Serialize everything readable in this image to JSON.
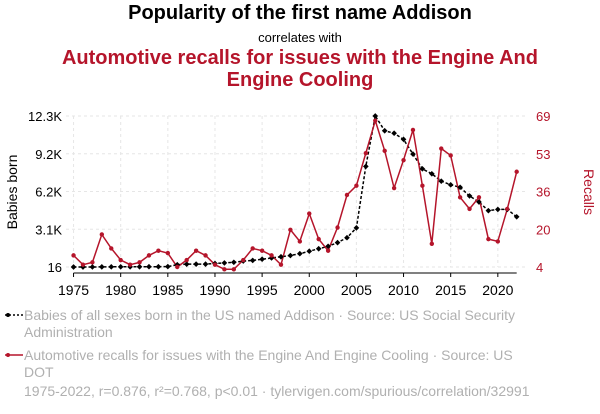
{
  "titles": {
    "line1": "Popularity of the first name Addison",
    "line2": "correlates with",
    "line3": "Automotive recalls for issues with the Engine And Engine Cooling"
  },
  "legend": {
    "series1": "Babies of all sexes born in the US named Addison · Source: US Social Security Administration",
    "series2": "Automotive recalls for issues with the Engine And Engine Cooling · Source: US DOT"
  },
  "footer": "1975-2022, r=0.876, r²=0.768, p<0.01 · tylervigen.com/spurious/correlation/32991",
  "colors": {
    "series1": "#000000",
    "series2": "#b5152b",
    "grid": "#e6e6e6"
  },
  "chart_data": {
    "type": "line",
    "x": [
      1975,
      1976,
      1977,
      1978,
      1979,
      1980,
      1981,
      1982,
      1983,
      1984,
      1985,
      1986,
      1987,
      1988,
      1989,
      1990,
      1991,
      1992,
      1993,
      1994,
      1995,
      1996,
      1997,
      1998,
      1999,
      2000,
      2001,
      2002,
      2003,
      2004,
      2005,
      2006,
      2007,
      2008,
      2009,
      2010,
      2011,
      2012,
      2013,
      2014,
      2015,
      2016,
      2017,
      2018,
      2019,
      2020,
      2021,
      2022
    ],
    "xticks": [
      "1975",
      "1980",
      "1985",
      "1990",
      "1995",
      "2000",
      "2005",
      "2010",
      "2015",
      "2020"
    ],
    "grid": true,
    "series": [
      {
        "name": "Babies of all sexes born in the US named Addison",
        "axis": "left",
        "ylabel": "Babies born",
        "ylim": [
          16,
          12300
        ],
        "yticks": [
          "16",
          "3.1K",
          "6.2K",
          "9.2K",
          "12.3K"
        ],
        "values": [
          16,
          16,
          20,
          25,
          30,
          30,
          30,
          35,
          40,
          40,
          50,
          200,
          250,
          250,
          250,
          300,
          350,
          400,
          500,
          550,
          650,
          750,
          850,
          950,
          1100,
          1300,
          1500,
          1700,
          2000,
          2400,
          3200,
          8200,
          12300,
          11100,
          10900,
          10400,
          9200,
          8000,
          7600,
          7000,
          6700,
          6500,
          5800,
          5300,
          4600,
          4700,
          4700,
          4100
        ]
      },
      {
        "name": "Automotive recalls for issues with the Engine And Engine Cooling",
        "axis": "right",
        "ylabel": "Recalls",
        "ylim": [
          4,
          69
        ],
        "yticks": [
          "4",
          "20",
          "36",
          "53",
          "69"
        ],
        "values": [
          9,
          5,
          6,
          18,
          12,
          7,
          5,
          6,
          9,
          11,
          10,
          4,
          7,
          11,
          9,
          5,
          3,
          3,
          7,
          12,
          11,
          9,
          5,
          20,
          15,
          27,
          16,
          11,
          21,
          35,
          39,
          53,
          67,
          54,
          38,
          50,
          63,
          39,
          14,
          55,
          52,
          34,
          29,
          34,
          16,
          15,
          29,
          45
        ]
      }
    ]
  }
}
